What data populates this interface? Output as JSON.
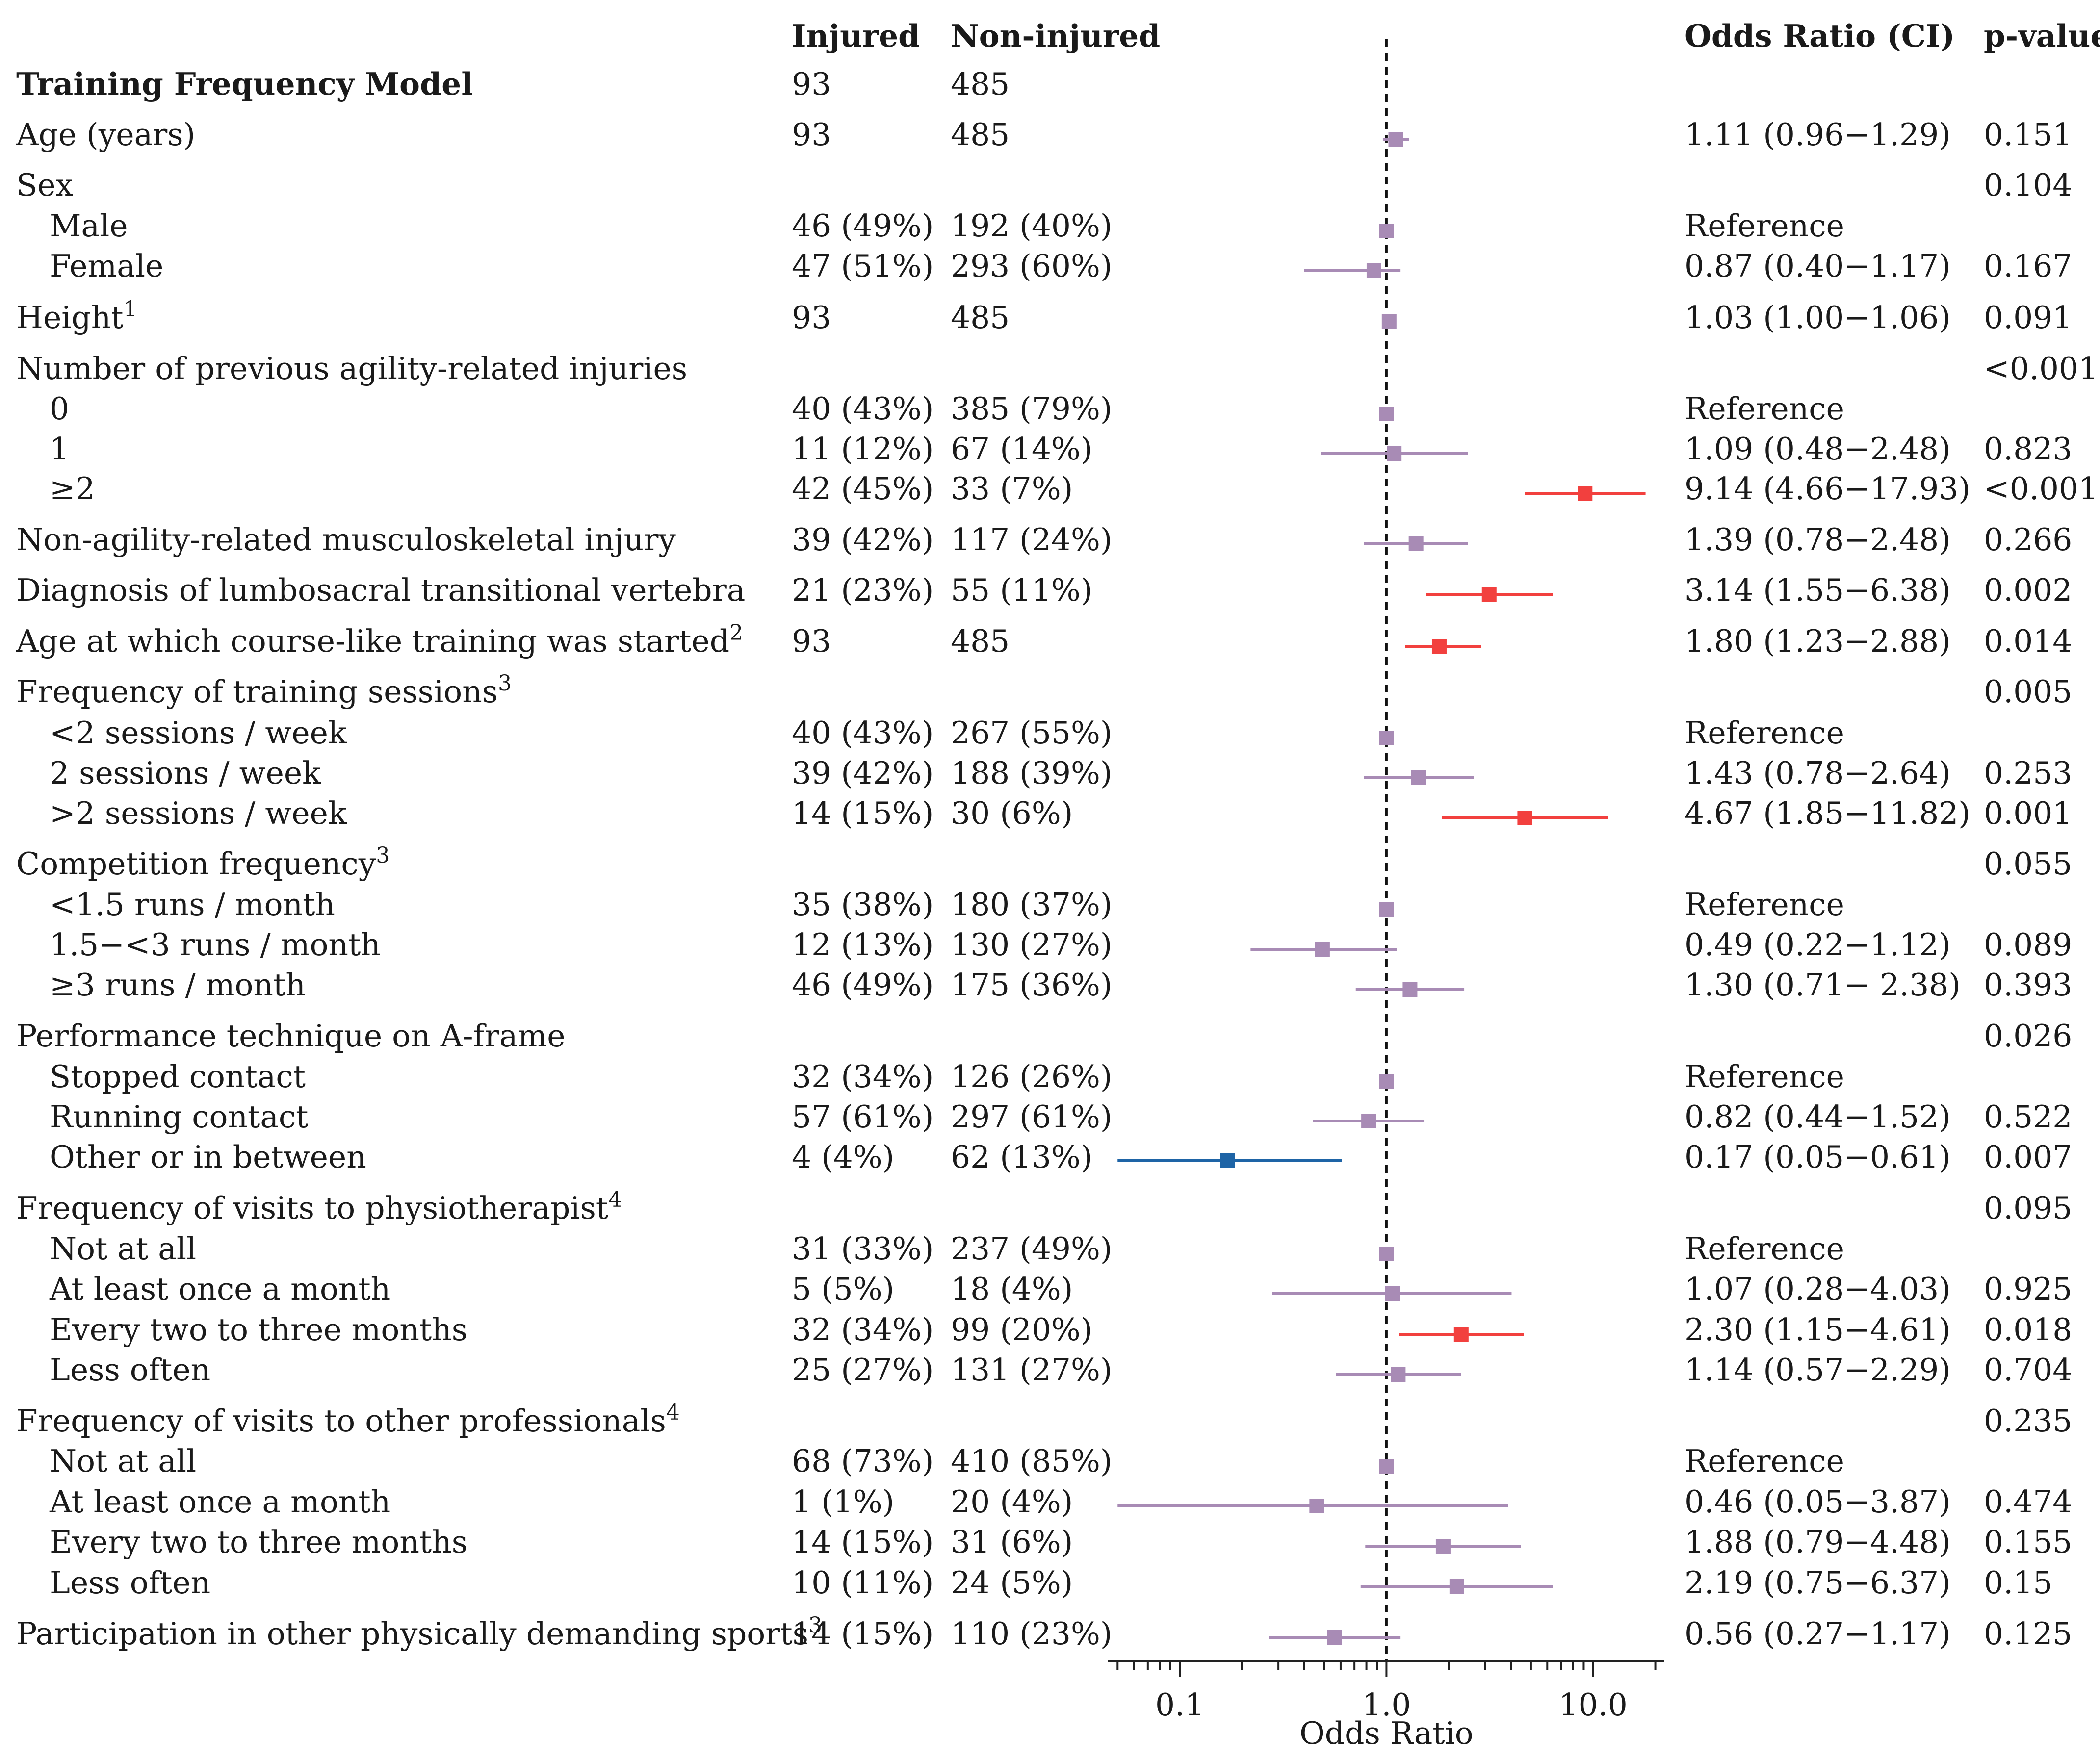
{
  "columns": {
    "injured": "Injured",
    "non_injured": "Non-injured",
    "odds_ratio": "Odds Ratio (CI)",
    "p_value": "p-value"
  },
  "rows": [
    {
      "label": "Training Frequency Model",
      "bold": true,
      "injured": "93",
      "non_injured": "485"
    },
    {
      "label": "Age (years)",
      "injured": "93",
      "non_injured": "485",
      "or_text": "1.11 (0.96−1.29)",
      "p": "0.151"
    },
    {
      "label": "Sex",
      "p": "0.104"
    },
    {
      "label": "Male",
      "indent": true,
      "injured": "46 (49%)",
      "non_injured": "192 (40%)",
      "or_text": "Reference"
    },
    {
      "label": "Female",
      "indent": true,
      "injured": "47 (51%)",
      "non_injured": "293 (60%)",
      "or_text": "0.87 (0.40−1.17)",
      "p": "0.167"
    },
    {
      "label": "Height",
      "sup": "1",
      "injured": "93",
      "non_injured": "485",
      "or_text": "1.03 (1.00−1.06)",
      "p": "0.091"
    },
    {
      "label": "Number of previous agility-related injuries",
      "p": "<0.001"
    },
    {
      "label": "0",
      "indent": true,
      "injured": "40 (43%)",
      "non_injured": "385 (79%)",
      "or_text": "Reference"
    },
    {
      "label": "1",
      "indent": true,
      "injured": "11 (12%)",
      "non_injured": "67 (14%)",
      "or_text": "1.09 (0.48−2.48)",
      "p": "0.823"
    },
    {
      "label": "≥2",
      "indent": true,
      "injured": "42 (45%)",
      "non_injured": "33 (7%)",
      "or_text": "9.14 (4.66−17.93)",
      "p": "<0.001"
    },
    {
      "label": "Non-agility-related musculoskeletal injury",
      "injured": "39 (42%)",
      "non_injured": "117 (24%)",
      "or_text": "1.39 (0.78−2.48)",
      "p": "0.266"
    },
    {
      "label": "Diagnosis of lumbosacral transitional vertebra",
      "injured": "21 (23%)",
      "non_injured": "55 (11%)",
      "or_text": "3.14 (1.55−6.38)",
      "p": "0.002"
    },
    {
      "label": "Age at which course-like training was started",
      "sup": "2",
      "injured": "93",
      "non_injured": "485",
      "or_text": "1.80 (1.23−2.88)",
      "p": "0.014"
    },
    {
      "label": "Frequency of training sessions",
      "sup": "3",
      "p": "0.005"
    },
    {
      "label": "<2 sessions / week",
      "indent": true,
      "injured": "40 (43%)",
      "non_injured": "267 (55%)",
      "or_text": "Reference"
    },
    {
      "label": "2 sessions / week",
      "indent": true,
      "injured": "39 (42%)",
      "non_injured": "188 (39%)",
      "or_text": "1.43 (0.78−2.64)",
      "p": "0.253"
    },
    {
      "label": ">2 sessions / week",
      "indent": true,
      "injured": "14 (15%)",
      "non_injured": "30 (6%)",
      "or_text": "4.67 (1.85−11.82)",
      "p": "0.001"
    },
    {
      "label": "Competition frequency",
      "sup": "3",
      "p": "0.055"
    },
    {
      "label": "<1.5 runs / month",
      "indent": true,
      "injured": "35 (38%)",
      "non_injured": "180 (37%)",
      "or_text": "Reference"
    },
    {
      "label": "1.5−<3 runs / month",
      "indent": true,
      "injured": "12 (13%)",
      "non_injured": "130 (27%)",
      "or_text": "0.49 (0.22−1.12)",
      "p": "0.089"
    },
    {
      "label": "≥3 runs / month",
      "indent": true,
      "injured": "46 (49%)",
      "non_injured": "175 (36%)",
      "or_text": "1.30 (0.71− 2.38)",
      "p": "0.393"
    },
    {
      "label": "Performance technique on A-frame",
      "p": "0.026"
    },
    {
      "label": "Stopped contact",
      "indent": true,
      "injured": "32 (34%)",
      "non_injured": "126 (26%)",
      "or_text": "Reference"
    },
    {
      "label": "Running contact",
      "indent": true,
      "injured": "57 (61%)",
      "non_injured": "297 (61%)",
      "or_text": "0.82 (0.44−1.52)",
      "p": "0.522"
    },
    {
      "label": "Other or in between",
      "indent": true,
      "injured": "4 (4%)",
      "non_injured": "62 (13%)",
      "or_text": "0.17 (0.05−0.61)",
      "p": "0.007"
    },
    {
      "label": "Frequency of visits to physiotherapist",
      "sup": "4",
      "p": "0.095"
    },
    {
      "label": "Not at all",
      "indent": true,
      "injured": "31 (33%)",
      "non_injured": "237 (49%)",
      "or_text": "Reference"
    },
    {
      "label": "At least once a month",
      "indent": true,
      "injured": "5 (5%)",
      "non_injured": "18 (4%)",
      "or_text": "1.07 (0.28−4.03)",
      "p": "0.925"
    },
    {
      "label": "Every two to three months",
      "indent": true,
      "injured": "32 (34%)",
      "non_injured": "99 (20%)",
      "or_text": "2.30 (1.15−4.61)",
      "p": "0.018"
    },
    {
      "label": "Less often",
      "indent": true,
      "injured": "25 (27%)",
      "non_injured": "131 (27%)",
      "or_text": "1.14 (0.57−2.29)",
      "p": "0.704"
    },
    {
      "label": "Frequency of visits to other professionals",
      "sup": "4",
      "p": "0.235"
    },
    {
      "label": "Not at all",
      "indent": true,
      "injured": "68 (73%)",
      "non_injured": "410 (85%)",
      "or_text": "Reference"
    },
    {
      "label": "At least once a month",
      "indent": true,
      "injured": "1 (1%)",
      "non_injured": "20 (4%)",
      "or_text": "0.46 (0.05−3.87)",
      "p": "0.474"
    },
    {
      "label": "Every two to three months",
      "indent": true,
      "injured": "14 (15%)",
      "non_injured": "31 (6%)",
      "or_text": "1.88 (0.79−4.48)",
      "p": "0.155"
    },
    {
      "label": "Less often",
      "indent": true,
      "injured": "10 (11%)",
      "non_injured": "24 (5%)",
      "or_text": "2.19 (0.75−6.37)",
      "p": "0.15"
    },
    {
      "label": "Participation in other physically demanding sports",
      "sup": "3",
      "injured": "14 (15%)",
      "non_injured": "110 (23%)",
      "or_text": "0.56 (0.27−1.17)",
      "p": "0.125"
    }
  ],
  "chart_data": {
    "type": "forest",
    "xlabel": "Odds Ratio",
    "xscale": "log",
    "xlim": [
      0.045,
      22
    ],
    "xticks": [
      0.1,
      1.0,
      10.0
    ],
    "xtick_labels": [
      "0.1",
      "1.0",
      "10.0"
    ],
    "reference_line": 1.0,
    "colors": {
      "neutral": "#a88bb5",
      "increased": "#f2403e",
      "decreased": "#1e64a6",
      "reference_line": "#111111",
      "axis": "#222222"
    },
    "points": [
      {
        "label": "Age (years)",
        "row": 1,
        "or": 1.11,
        "lo": 0.96,
        "hi": 1.29,
        "group": "neutral"
      },
      {
        "label": "Male",
        "row": 3,
        "or": 1.0,
        "group": "neutral",
        "reference": true
      },
      {
        "label": "Female",
        "row": 4,
        "or": 0.87,
        "lo": 0.4,
        "hi": 1.17,
        "group": "neutral"
      },
      {
        "label": "Height",
        "row": 5,
        "or": 1.03,
        "lo": 1.0,
        "hi": 1.06,
        "group": "neutral"
      },
      {
        "label": "0",
        "row": 7,
        "or": 1.0,
        "group": "neutral",
        "reference": true
      },
      {
        "label": "1",
        "row": 8,
        "or": 1.09,
        "lo": 0.48,
        "hi": 2.48,
        "group": "neutral"
      },
      {
        "label": "≥2",
        "row": 9,
        "or": 9.14,
        "lo": 4.66,
        "hi": 17.93,
        "group": "increased"
      },
      {
        "label": "Non-agility-related musculoskeletal injury",
        "row": 10,
        "or": 1.39,
        "lo": 0.78,
        "hi": 2.48,
        "group": "neutral"
      },
      {
        "label": "Diagnosis of lumbosacral transitional vertebra",
        "row": 11,
        "or": 3.14,
        "lo": 1.55,
        "hi": 6.38,
        "group": "increased"
      },
      {
        "label": "Age at which course-like training was started",
        "row": 12,
        "or": 1.8,
        "lo": 1.23,
        "hi": 2.88,
        "group": "increased"
      },
      {
        "label": "<2 sessions / week",
        "row": 14,
        "or": 1.0,
        "group": "neutral",
        "reference": true
      },
      {
        "label": "2 sessions / week",
        "row": 15,
        "or": 1.43,
        "lo": 0.78,
        "hi": 2.64,
        "group": "neutral"
      },
      {
        "label": ">2 sessions / week",
        "row": 16,
        "or": 4.67,
        "lo": 1.85,
        "hi": 11.82,
        "group": "increased"
      },
      {
        "label": "<1.5 runs / month",
        "row": 18,
        "or": 1.0,
        "group": "neutral",
        "reference": true
      },
      {
        "label": "1.5−<3 runs / month",
        "row": 19,
        "or": 0.49,
        "lo": 0.22,
        "hi": 1.12,
        "group": "neutral"
      },
      {
        "label": "≥3 runs / month",
        "row": 20,
        "or": 1.3,
        "lo": 0.71,
        "hi": 2.38,
        "group": "neutral"
      },
      {
        "label": "Stopped contact",
        "row": 22,
        "or": 1.0,
        "group": "neutral",
        "reference": true
      },
      {
        "label": "Running contact",
        "row": 23,
        "or": 0.82,
        "lo": 0.44,
        "hi": 1.52,
        "group": "neutral"
      },
      {
        "label": "Other or in between",
        "row": 24,
        "or": 0.17,
        "lo": 0.05,
        "hi": 0.61,
        "group": "decreased"
      },
      {
        "label": "Not at all",
        "row": 26,
        "or": 1.0,
        "group": "neutral",
        "reference": true
      },
      {
        "label": "At least once a month",
        "row": 27,
        "or": 1.07,
        "lo": 0.28,
        "hi": 4.03,
        "group": "neutral"
      },
      {
        "label": "Every two to three months",
        "row": 28,
        "or": 2.3,
        "lo": 1.15,
        "hi": 4.61,
        "group": "increased"
      },
      {
        "label": "Less often",
        "row": 29,
        "or": 1.14,
        "lo": 0.57,
        "hi": 2.29,
        "group": "neutral"
      },
      {
        "label": "Not at all",
        "row": 31,
        "or": 1.0,
        "group": "neutral",
        "reference": true
      },
      {
        "label": "At least once a month",
        "row": 32,
        "or": 0.46,
        "lo": 0.05,
        "hi": 3.87,
        "group": "neutral"
      },
      {
        "label": "Every two to three months",
        "row": 33,
        "or": 1.88,
        "lo": 0.79,
        "hi": 4.48,
        "group": "neutral"
      },
      {
        "label": "Less often",
        "row": 34,
        "or": 2.19,
        "lo": 0.75,
        "hi": 6.37,
        "group": "neutral"
      },
      {
        "label": "Participation in other physically demanding sports",
        "row": 35,
        "or": 0.56,
        "lo": 0.27,
        "hi": 1.17,
        "group": "neutral"
      }
    ]
  }
}
